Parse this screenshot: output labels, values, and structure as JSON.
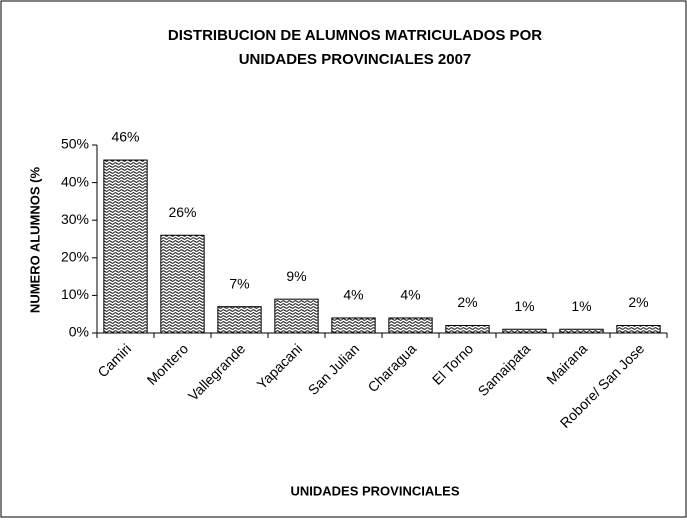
{
  "chart_data": {
    "type": "bar",
    "title": [
      "DISTRIBUCION DE ALUMNOS MATRICULADOS  POR",
      "UNIDADES PROVINCIALES 2007"
    ],
    "x_label": "UNIDADES PROVINCIALES",
    "y_label": "NUMERO ALUMNOS (%",
    "categories": [
      "Camiri",
      "Montero",
      "Vallegrande",
      "Yapacani",
      "San Julian",
      "Charagua",
      "El  Torno",
      "Samaipata",
      "Mairana",
      "Robore/ San Jose"
    ],
    "values": [
      46,
      26,
      7,
      9,
      4,
      4,
      2,
      1,
      1,
      2
    ],
    "value_labels": [
      "46%",
      "26%",
      "7%",
      "9%",
      "4%",
      "4%",
      "2%",
      "1%",
      "1%",
      "2%"
    ],
    "color": "#000000",
    "ylim": [
      0,
      50
    ],
    "yticks": [
      {
        "value": 0,
        "label": "0%"
      },
      {
        "value": 10,
        "label": "10%"
      },
      {
        "value": 20,
        "label": "20%"
      },
      {
        "value": 30,
        "label": "30%"
      },
      {
        "value": 40,
        "label": "40%"
      },
      {
        "value": 50,
        "label": "50%"
      }
    ],
    "grid": false
  }
}
